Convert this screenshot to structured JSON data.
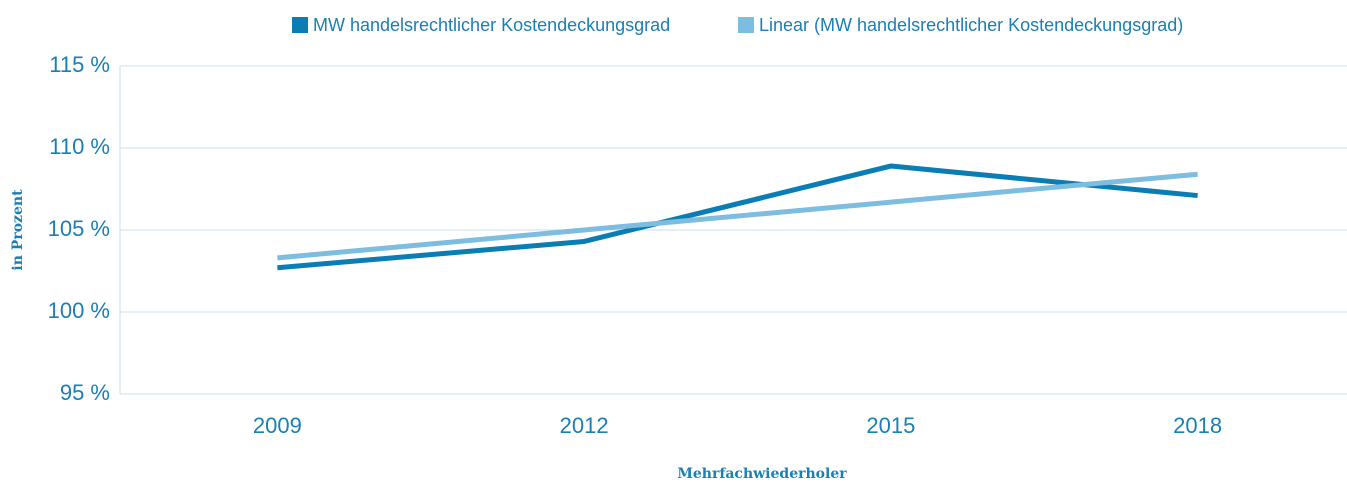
{
  "chart_data": {
    "type": "line",
    "categories": [
      "2009",
      "2012",
      "2015",
      "2018"
    ],
    "series": [
      {
        "name": "MW handelsrechtlicher Kostendeckungsgrad",
        "color": "#0a7db4",
        "values": [
          102.7,
          104.3,
          108.9,
          107.1
        ]
      },
      {
        "name": "Linear (MW handelsrechtlicher Kostendeckungsgrad)",
        "color": "#7dbde0",
        "values": [
          103.3,
          105.0,
          106.7,
          108.4
        ]
      }
    ],
    "ylim": [
      95,
      115
    ],
    "yticks": [
      {
        "value": 95,
        "label": "95 %"
      },
      {
        "value": 100,
        "label": "100 %"
      },
      {
        "value": 105,
        "label": "105 %"
      },
      {
        "value": 110,
        "label": "110 %"
      },
      {
        "value": 115,
        "label": "115 %"
      }
    ],
    "ylabel": "in Prozent",
    "xlabel": "Mehrfachwiederholer",
    "grid": true
  }
}
